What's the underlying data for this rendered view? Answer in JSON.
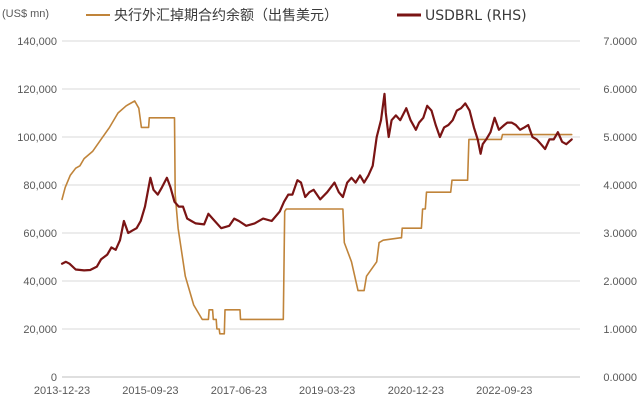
{
  "chart_data": {
    "type": "line",
    "y_unit_label": "(US$ mn)",
    "legend_position": "top",
    "grid": true,
    "x_axis": {
      "range": [
        "2013-12-23",
        "2024-03-23"
      ],
      "ticks": [
        "2013-12-23",
        "2015-09-23",
        "2017-06-23",
        "2019-03-23",
        "2020-12-23",
        "2022-09-23"
      ]
    },
    "y_left": {
      "range": [
        0,
        140000
      ],
      "ticks": [
        0,
        20000,
        40000,
        60000,
        80000,
        100000,
        120000,
        140000
      ],
      "tick_labels": [
        "0",
        "20,000",
        "40,000",
        "60,000",
        "80,000",
        "100,000",
        "120,000",
        "140,000"
      ]
    },
    "y_right": {
      "range": [
        0,
        7
      ],
      "ticks": [
        0,
        1,
        2,
        3,
        4,
        5,
        6,
        7
      ],
      "tick_labels": [
        "0.0000",
        "1.0000",
        "2.0000",
        "3.0000",
        "4.0000",
        "5.0000",
        "6.0000",
        "7.0000"
      ]
    },
    "series": [
      {
        "name": "央行外汇掉期合约余额（出售美元）",
        "axis": "left",
        "color": "#c0843a",
        "points": [
          [
            "2013-12-23",
            74000
          ],
          [
            "2014-01-15",
            79000
          ],
          [
            "2014-02-20",
            84000
          ],
          [
            "2014-04-01",
            87000
          ],
          [
            "2014-05-01",
            88000
          ],
          [
            "2014-06-01",
            91000
          ],
          [
            "2014-08-01",
            94000
          ],
          [
            "2014-10-01",
            99000
          ],
          [
            "2014-12-01",
            104000
          ],
          [
            "2015-02-01",
            110000
          ],
          [
            "2015-04-01",
            113000
          ],
          [
            "2015-06-01",
            115000
          ],
          [
            "2015-07-01",
            112000
          ],
          [
            "2015-07-20",
            104000
          ],
          [
            "2015-09-10",
            104000
          ],
          [
            "2015-09-15",
            108000
          ],
          [
            "2016-03-15",
            108000
          ],
          [
            "2016-03-20",
            76000
          ],
          [
            "2016-04-10",
            62000
          ],
          [
            "2016-06-01",
            42000
          ],
          [
            "2016-08-01",
            30000
          ],
          [
            "2016-10-01",
            24000
          ],
          [
            "2016-11-15",
            24000
          ],
          [
            "2016-11-20",
            28000
          ],
          [
            "2016-12-15",
            28000
          ],
          [
            "2016-12-20",
            24000
          ],
          [
            "2017-01-10",
            24000
          ],
          [
            "2017-01-15",
            20000
          ],
          [
            "2017-02-01",
            20000
          ],
          [
            "2017-02-05",
            18000
          ],
          [
            "2017-03-10",
            18000
          ],
          [
            "2017-03-15",
            28000
          ],
          [
            "2017-07-01",
            28000
          ],
          [
            "2017-07-05",
            24000
          ],
          [
            "2018-05-10",
            24000
          ],
          [
            "2018-05-20",
            69000
          ],
          [
            "2018-06-01",
            70000
          ],
          [
            "2019-07-15",
            70000
          ],
          [
            "2019-07-25",
            56000
          ],
          [
            "2019-09-15",
            48000
          ],
          [
            "2019-11-01",
            36000
          ],
          [
            "2019-12-15",
            36000
          ],
          [
            "2020-01-01",
            42000
          ],
          [
            "2020-03-15",
            48000
          ],
          [
            "2020-04-01",
            56000
          ],
          [
            "2020-05-01",
            57000
          ],
          [
            "2020-09-01",
            58000
          ],
          [
            "2020-09-10",
            58000
          ],
          [
            "2020-09-15",
            62000
          ],
          [
            "2021-02-01",
            62000
          ],
          [
            "2021-02-10",
            70000
          ],
          [
            "2021-03-01",
            70000
          ],
          [
            "2021-03-10",
            77000
          ],
          [
            "2021-09-01",
            77000
          ],
          [
            "2021-09-10",
            82000
          ],
          [
            "2022-01-01",
            82000
          ],
          [
            "2022-01-10",
            99000
          ],
          [
            "2022-09-01",
            99000
          ],
          [
            "2022-09-10",
            101000
          ],
          [
            "2024-01-23",
            101000
          ]
        ]
      },
      {
        "name": "USDBRL (RHS)",
        "axis": "right",
        "color": "#7a1414",
        "points": [
          [
            "2013-12-23",
            2.36
          ],
          [
            "2014-01-20",
            2.4
          ],
          [
            "2014-02-15",
            2.36
          ],
          [
            "2014-04-01",
            2.24
          ],
          [
            "2014-06-01",
            2.22
          ],
          [
            "2014-07-15",
            2.23
          ],
          [
            "2014-09-01",
            2.3
          ],
          [
            "2014-10-01",
            2.45
          ],
          [
            "2014-11-15",
            2.55
          ],
          [
            "2014-12-15",
            2.7
          ],
          [
            "2015-01-15",
            2.65
          ],
          [
            "2015-02-15",
            2.85
          ],
          [
            "2015-03-15",
            3.25
          ],
          [
            "2015-04-15",
            3.0
          ],
          [
            "2015-05-15",
            3.05
          ],
          [
            "2015-06-15",
            3.1
          ],
          [
            "2015-07-15",
            3.25
          ],
          [
            "2015-08-15",
            3.55
          ],
          [
            "2015-09-23",
            4.15
          ],
          [
            "2015-10-15",
            3.9
          ],
          [
            "2015-11-15",
            3.8
          ],
          [
            "2015-12-15",
            3.95
          ],
          [
            "2016-01-20",
            4.15
          ],
          [
            "2016-02-15",
            3.95
          ],
          [
            "2016-03-15",
            3.65
          ],
          [
            "2016-04-15",
            3.55
          ],
          [
            "2016-05-15",
            3.55
          ],
          [
            "2016-06-15",
            3.3
          ],
          [
            "2016-07-15",
            3.25
          ],
          [
            "2016-08-15",
            3.2
          ],
          [
            "2016-10-15",
            3.18
          ],
          [
            "2016-11-15",
            3.4
          ],
          [
            "2016-12-15",
            3.3
          ],
          [
            "2017-02-15",
            3.1
          ],
          [
            "2017-04-15",
            3.15
          ],
          [
            "2017-05-20",
            3.3
          ],
          [
            "2017-06-23",
            3.25
          ],
          [
            "2017-08-15",
            3.15
          ],
          [
            "2017-10-15",
            3.2
          ],
          [
            "2017-12-15",
            3.3
          ],
          [
            "2018-02-15",
            3.25
          ],
          [
            "2018-04-15",
            3.45
          ],
          [
            "2018-05-15",
            3.65
          ],
          [
            "2018-06-15",
            3.8
          ],
          [
            "2018-07-15",
            3.8
          ],
          [
            "2018-08-20",
            4.1
          ],
          [
            "2018-09-15",
            4.05
          ],
          [
            "2018-10-15",
            3.75
          ],
          [
            "2018-11-15",
            3.85
          ],
          [
            "2018-12-15",
            3.9
          ],
          [
            "2019-02-01",
            3.7
          ],
          [
            "2019-03-23",
            3.85
          ],
          [
            "2019-05-15",
            4.05
          ],
          [
            "2019-06-15",
            3.85
          ],
          [
            "2019-07-15",
            3.75
          ],
          [
            "2019-08-15",
            4.05
          ],
          [
            "2019-09-15",
            4.15
          ],
          [
            "2019-10-15",
            4.05
          ],
          [
            "2019-11-15",
            4.2
          ],
          [
            "2019-12-15",
            4.05
          ],
          [
            "2020-01-15",
            4.2
          ],
          [
            "2020-02-15",
            4.4
          ],
          [
            "2020-03-15",
            5.0
          ],
          [
            "2020-04-15",
            5.35
          ],
          [
            "2020-05-10",
            5.9
          ],
          [
            "2020-05-20",
            5.5
          ],
          [
            "2020-06-10",
            5.0
          ],
          [
            "2020-07-01",
            5.35
          ],
          [
            "2020-08-01",
            5.45
          ],
          [
            "2020-09-01",
            5.35
          ],
          [
            "2020-10-15",
            5.6
          ],
          [
            "2020-11-15",
            5.35
          ],
          [
            "2020-12-23",
            5.15
          ],
          [
            "2021-01-15",
            5.3
          ],
          [
            "2021-02-15",
            5.4
          ],
          [
            "2021-03-15",
            5.65
          ],
          [
            "2021-04-15",
            5.55
          ],
          [
            "2021-05-15",
            5.25
          ],
          [
            "2021-06-15",
            5.0
          ],
          [
            "2021-07-15",
            5.2
          ],
          [
            "2021-08-15",
            5.25
          ],
          [
            "2021-09-15",
            5.35
          ],
          [
            "2021-10-15",
            5.55
          ],
          [
            "2021-11-15",
            5.6
          ],
          [
            "2021-12-15",
            5.7
          ],
          [
            "2022-01-15",
            5.55
          ],
          [
            "2022-02-15",
            5.2
          ],
          [
            "2022-03-15",
            4.95
          ],
          [
            "2022-04-05",
            4.65
          ],
          [
            "2022-04-20",
            4.85
          ],
          [
            "2022-05-15",
            4.95
          ],
          [
            "2022-06-15",
            5.1
          ],
          [
            "2022-07-15",
            5.4
          ],
          [
            "2022-08-15",
            5.15
          ],
          [
            "2022-09-23",
            5.25
          ],
          [
            "2022-10-15",
            5.3
          ],
          [
            "2022-11-15",
            5.3
          ],
          [
            "2022-12-15",
            5.25
          ],
          [
            "2023-01-15",
            5.15
          ],
          [
            "2023-02-15",
            5.2
          ],
          [
            "2023-03-15",
            5.25
          ],
          [
            "2023-04-15",
            5.0
          ],
          [
            "2023-05-15",
            4.95
          ],
          [
            "2023-06-15",
            4.85
          ],
          [
            "2023-07-15",
            4.75
          ],
          [
            "2023-08-15",
            4.95
          ],
          [
            "2023-09-15",
            4.95
          ],
          [
            "2023-10-15",
            5.1
          ],
          [
            "2023-11-15",
            4.9
          ],
          [
            "2023-12-15",
            4.85
          ],
          [
            "2024-01-23",
            4.95
          ]
        ]
      }
    ]
  }
}
